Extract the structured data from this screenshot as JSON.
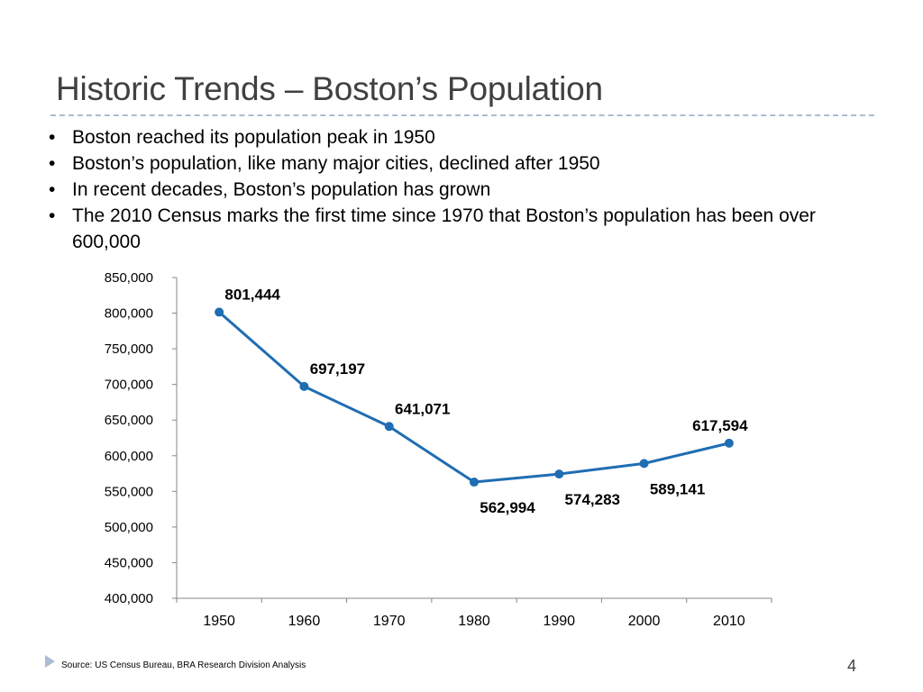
{
  "slide": {
    "title": "Historic Trends – Boston’s Population",
    "bullets": [
      "Boston reached its population peak in 1950",
      "Boston’s population, like many major cities, declined after 1950",
      "In recent decades, Boston’s population has grown",
      "The 2010 Census marks the first time since 1970 that Boston’s population has been over 600,000"
    ],
    "source": "Source: US Census Bureau, BRA Research Division Analysis",
    "page_number": "4",
    "accent_color": "#a9bed3"
  },
  "chart_data": {
    "type": "line",
    "title": "",
    "xlabel": "",
    "ylabel": "",
    "categories": [
      "1950",
      "1960",
      "1970",
      "1980",
      "1990",
      "2000",
      "2010"
    ],
    "values": [
      801444,
      697197,
      641071,
      562994,
      574283,
      589141,
      617594
    ],
    "value_labels": [
      "801,444",
      "697,197",
      "641,071",
      "562,994",
      "574,283",
      "589,141",
      "617,594"
    ],
    "ylim": [
      400000,
      850000
    ],
    "yticks": [
      400000,
      450000,
      500000,
      550000,
      600000,
      650000,
      700000,
      750000,
      800000,
      850000
    ],
    "ytick_labels": [
      "400,000",
      "450,000",
      "500,000",
      "550,000",
      "600,000",
      "650,000",
      "700,000",
      "750,000",
      "800,000",
      "850,000"
    ],
    "grid": false,
    "legend": "none",
    "line_color": "#1f6db3"
  }
}
